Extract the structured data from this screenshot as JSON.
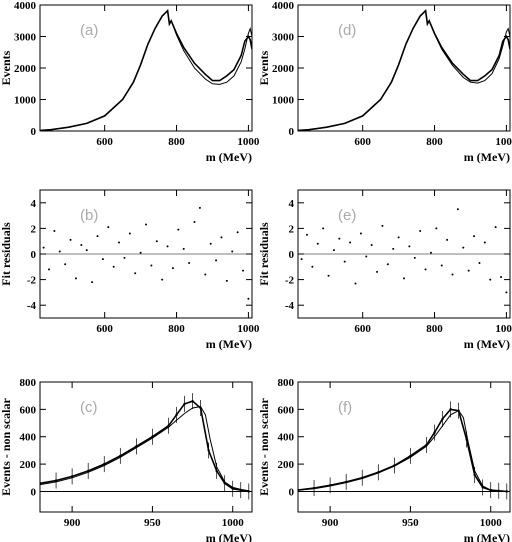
{
  "figure": {
    "panels": [
      {
        "id": "a",
        "label": "(a)",
        "type": "line",
        "xlabel": "m (MeV)",
        "ylabel": "Events",
        "xlim": [
          420,
          1010
        ],
        "ylim": [
          0,
          4000
        ],
        "xticks": [
          600,
          800,
          1000
        ],
        "yticks": [
          0,
          1000,
          2000,
          3000,
          4000
        ],
        "series": [
          {
            "name": "data",
            "x": [
              420,
              450,
              500,
              550,
              600,
              650,
              680,
              700,
              720,
              740,
              760,
              775,
              780,
              785,
              800,
              820,
              850,
              880,
              900,
              920,
              940,
              960,
              980,
              990,
              1000,
              1005,
              1010
            ],
            "y": [
              20,
              40,
              120,
              240,
              480,
              1000,
              1550,
              2100,
              2750,
              3250,
              3650,
              3820,
              3400,
              3500,
              3100,
              2650,
              2150,
              1800,
              1600,
              1600,
              1750,
              1950,
              2400,
              2850,
              3000,
              2900,
              2600
            ]
          },
          {
            "name": "fit",
            "x": [
              420,
              450,
              500,
              550,
              600,
              650,
              680,
              700,
              720,
              740,
              760,
              775,
              780,
              785,
              800,
              820,
              850,
              880,
              900,
              920,
              940,
              960,
              980,
              990,
              1000,
              1005,
              1010
            ],
            "y": [
              20,
              40,
              120,
              240,
              480,
              1000,
              1550,
              2100,
              2750,
              3250,
              3650,
              3820,
              3400,
              3500,
              3050,
              2550,
              2000,
              1650,
              1500,
              1480,
              1550,
              1750,
              2200,
              2600,
              3100,
              3250,
              3000
            ]
          }
        ]
      },
      {
        "id": "d",
        "label": "(d)",
        "type": "line",
        "xlabel": "m (MeV)",
        "ylabel": "Events",
        "xlim": [
          420,
          1010
        ],
        "ylim": [
          0,
          4000
        ],
        "xticks": [
          600,
          800,
          1000
        ],
        "yticks": [
          0,
          1000,
          2000,
          3000,
          4000
        ],
        "series": [
          {
            "name": "data",
            "x": [
              420,
              450,
              500,
              550,
              600,
              650,
              680,
              700,
              720,
              740,
              760,
              775,
              780,
              785,
              800,
              820,
              850,
              880,
              900,
              920,
              940,
              960,
              980,
              990,
              1000,
              1005,
              1010
            ],
            "y": [
              20,
              40,
              120,
              240,
              480,
              1000,
              1550,
              2100,
              2750,
              3250,
              3650,
              3820,
              3400,
              3500,
              3100,
              2650,
              2150,
              1800,
              1600,
              1600,
              1750,
              1950,
              2400,
              2850,
              3000,
              2900,
              2600
            ]
          },
          {
            "name": "fit",
            "x": [
              420,
              450,
              500,
              550,
              600,
              650,
              680,
              700,
              720,
              740,
              760,
              775,
              780,
              785,
              800,
              820,
              850,
              880,
              900,
              920,
              940,
              960,
              980,
              990,
              1000,
              1005,
              1010
            ],
            "y": [
              20,
              40,
              120,
              240,
              480,
              1000,
              1550,
              2100,
              2750,
              3250,
              3650,
              3820,
              3400,
              3500,
              3080,
              2600,
              2080,
              1700,
              1550,
              1520,
              1600,
              1820,
              2300,
              2700,
              3150,
              3250,
              3000
            ]
          }
        ]
      },
      {
        "id": "b",
        "label": "(b)",
        "type": "scatter",
        "xlabel": "m (MeV)",
        "ylabel": "Fit residuals",
        "xlim": [
          420,
          1010
        ],
        "ylim": [
          -5,
          5
        ],
        "xticks": [
          600,
          800,
          1000
        ],
        "yticks": [
          -4,
          -2,
          0,
          2,
          4
        ],
        "x": [
          430,
          445,
          460,
          475,
          490,
          505,
          520,
          535,
          550,
          565,
          580,
          595,
          610,
          625,
          640,
          655,
          670,
          685,
          700,
          715,
          730,
          745,
          760,
          775,
          790,
          805,
          820,
          835,
          850,
          865,
          880,
          895,
          910,
          925,
          940,
          955,
          970,
          985,
          1000
        ],
        "y": [
          0.5,
          -1.2,
          1.8,
          0.2,
          -0.8,
          1.1,
          -1.9,
          0.7,
          0.3,
          -2.2,
          1.4,
          -0.4,
          2.1,
          -1.0,
          0.9,
          -0.3,
          1.6,
          -1.5,
          0.1,
          2.3,
          -0.9,
          1.0,
          -2.0,
          0.6,
          -1.1,
          1.9,
          0.4,
          -0.7,
          2.5,
          3.6,
          -1.6,
          0.8,
          -0.5,
          1.3,
          -2.1,
          0.2,
          1.7,
          -1.3,
          -3.5
        ]
      },
      {
        "id": "e",
        "label": "(e)",
        "type": "scatter",
        "xlabel": "m (MeV)",
        "ylabel": "Fit residuals",
        "xlim": [
          420,
          1010
        ],
        "ylim": [
          -5,
          5
        ],
        "xticks": [
          600,
          800,
          1000
        ],
        "yticks": [
          -4,
          -2,
          0,
          2,
          4
        ],
        "x": [
          430,
          445,
          460,
          475,
          490,
          505,
          520,
          535,
          550,
          565,
          580,
          595,
          610,
          625,
          640,
          655,
          670,
          685,
          700,
          715,
          730,
          745,
          760,
          775,
          790,
          805,
          820,
          835,
          850,
          865,
          880,
          895,
          910,
          925,
          940,
          955,
          970,
          985,
          1000
        ],
        "y": [
          -0.4,
          1.5,
          -1.0,
          0.8,
          2.0,
          -1.7,
          0.3,
          1.2,
          -0.6,
          0.9,
          -2.3,
          1.6,
          -0.2,
          0.7,
          -1.4,
          2.2,
          -0.8,
          0.4,
          1.3,
          -1.9,
          0.6,
          -0.3,
          1.8,
          -1.2,
          0.1,
          2.0,
          -0.9,
          1.1,
          -1.6,
          3.5,
          0.5,
          -1.3,
          1.4,
          -0.7,
          0.9,
          -2.0,
          2.1,
          -1.8,
          -3.0
        ]
      },
      {
        "id": "c",
        "label": "(c)",
        "type": "line",
        "xlabel": "m (MeV)",
        "ylabel": "Events - non scalar",
        "xlim": [
          880,
          1012
        ],
        "ylim": [
          -150,
          800
        ],
        "xticks": [
          900,
          950,
          1000
        ],
        "yticks": [
          0,
          200,
          400,
          600,
          800
        ],
        "series": [
          {
            "name": "data",
            "x": [
              880,
              890,
              900,
              910,
              920,
              930,
              940,
              950,
              960,
              965,
              970,
              975,
              980,
              985,
              990,
              995,
              1000,
              1005,
              1010
            ],
            "y": [
              60,
              80,
              110,
              150,
              200,
              260,
              330,
              400,
              480,
              560,
              640,
              660,
              610,
              300,
              150,
              60,
              20,
              10,
              0
            ]
          },
          {
            "name": "fit",
            "x": [
              880,
              890,
              900,
              910,
              920,
              930,
              940,
              950,
              960,
              965,
              970,
              975,
              980,
              983,
              986,
              990,
              995,
              1000,
              1005,
              1010
            ],
            "y": [
              50,
              70,
              100,
              140,
              190,
              250,
              320,
              390,
              470,
              520,
              570,
              610,
              620,
              560,
              380,
              180,
              70,
              30,
              15,
              5
            ]
          }
        ]
      },
      {
        "id": "f",
        "label": "(f)",
        "type": "line",
        "xlabel": "m (MeV)",
        "ylabel": "Events - non scalar",
        "xlim": [
          880,
          1012
        ],
        "ylim": [
          -150,
          800
        ],
        "xticks": [
          900,
          950,
          1000
        ],
        "yticks": [
          0,
          200,
          400,
          600,
          800
        ],
        "series": [
          {
            "name": "data",
            "x": [
              880,
              890,
              900,
              910,
              920,
              930,
              940,
              950,
              960,
              965,
              970,
              975,
              980,
              985,
              990,
              995,
              1000,
              1005,
              1010
            ],
            "y": [
              10,
              25,
              45,
              70,
              100,
              140,
              190,
              260,
              340,
              430,
              530,
              600,
              590,
              380,
              120,
              30,
              10,
              5,
              0
            ]
          },
          {
            "name": "fit",
            "x": [
              880,
              890,
              900,
              910,
              920,
              930,
              940,
              950,
              960,
              965,
              970,
              975,
              980,
              983,
              986,
              990,
              995,
              1000,
              1005,
              1010
            ],
            "y": [
              10,
              20,
              40,
              65,
              95,
              135,
              185,
              250,
              330,
              400,
              480,
              560,
              590,
              540,
              360,
              150,
              40,
              10,
              3,
              0
            ]
          }
        ]
      }
    ]
  },
  "chart_data": [
    {
      "type": "line",
      "title": "(a)",
      "xlabel": "m (MeV)",
      "ylabel": "Events",
      "xlim": [
        420,
        1010
      ],
      "ylim": [
        0,
        4000
      ]
    },
    {
      "type": "line",
      "title": "(d)",
      "xlabel": "m (MeV)",
      "ylabel": "Events",
      "xlim": [
        420,
        1010
      ],
      "ylim": [
        0,
        4000
      ]
    },
    {
      "type": "scatter",
      "title": "(b)",
      "xlabel": "m (MeV)",
      "ylabel": "Fit residuals",
      "xlim": [
        420,
        1010
      ],
      "ylim": [
        -5,
        5
      ]
    },
    {
      "type": "scatter",
      "title": "(e)",
      "xlabel": "m (MeV)",
      "ylabel": "Fit residuals",
      "xlim": [
        420,
        1010
      ],
      "ylim": [
        -5,
        5
      ]
    },
    {
      "type": "line",
      "title": "(c)",
      "xlabel": "m (MeV)",
      "ylabel": "Events - non scalar",
      "xlim": [
        880,
        1012
      ],
      "ylim": [
        -150,
        800
      ]
    },
    {
      "type": "line",
      "title": "(f)",
      "xlabel": "m (MeV)",
      "ylabel": "Events - non scalar",
      "xlim": [
        880,
        1012
      ],
      "ylim": [
        -150,
        800
      ]
    }
  ]
}
